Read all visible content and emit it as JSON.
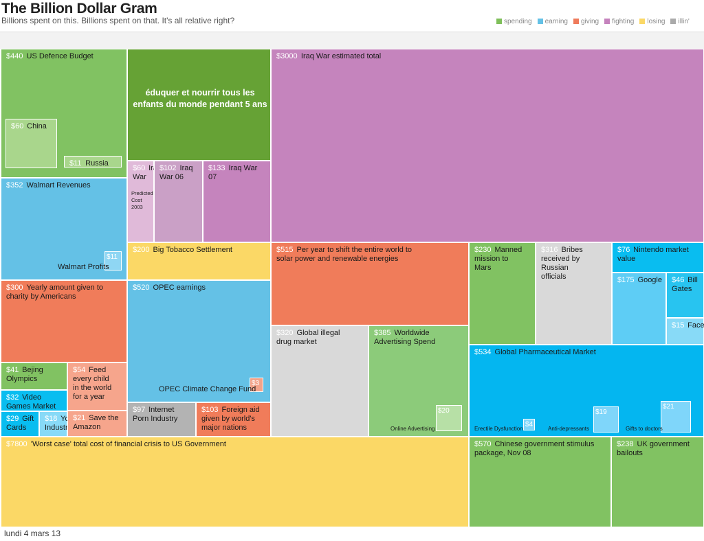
{
  "slide": {
    "overlay_text": "éduquer et nourrir tous les enfants du monde pendant 5 ans",
    "footer_date": "lundi 4 mars 13"
  },
  "chart_data": {
    "type": "treemap",
    "title": "The Billion Dollar Gram",
    "subtitle": "Billions spent on this. Billions spent on that. It's all relative right?",
    "legend": [
      {
        "label": "spending",
        "color": "#7fbf5a"
      },
      {
        "label": "earning",
        "color": "#64c1e6"
      },
      {
        "label": "giving",
        "color": "#ef7b5c"
      },
      {
        "label": "fighting",
        "color": "#c583bd"
      },
      {
        "label": "losing",
        "color": "#fbd866"
      },
      {
        "label": "illin'",
        "color": "#aaaaaa"
      }
    ],
    "items": [
      {
        "id": "us-defence",
        "value": "$440",
        "label": "US Defence Budget",
        "category": "spending",
        "color": "#81c262",
        "text": "#1a1a1a"
      },
      {
        "id": "china",
        "value": "$60",
        "label": "China",
        "category": "spending",
        "color": "#a9d68c",
        "text": "#1a1a1a"
      },
      {
        "id": "russia",
        "value": "$11",
        "label": "Russia",
        "category": "spending",
        "color": "#a9d68c",
        "text": "#1a1a1a"
      },
      {
        "id": "educate",
        "value": "",
        "label": "",
        "category": "spending",
        "color": "#66a235",
        "text": "#ffffff"
      },
      {
        "id": "iraq-total",
        "value": "$3000",
        "label": "Iraq War estimated total",
        "category": "fighting",
        "color": "#c584bd",
        "text": "#1a1a1a"
      },
      {
        "id": "iraq-2003",
        "value": "$60",
        "label": "Iraq War",
        "sublabel": "Predicted Cost 2003",
        "category": "fighting",
        "color": "#e0bad9",
        "text": "#1a1a1a"
      },
      {
        "id": "iraq-06",
        "value": "$102",
        "label": "Iraq War 06",
        "category": "fighting",
        "color": "#caa0c6",
        "text": "#1a1a1a"
      },
      {
        "id": "iraq-07",
        "value": "$133",
        "label": "Iraq War 07",
        "category": "fighting",
        "color": "#c584bd",
        "text": "#1a1a1a"
      },
      {
        "id": "walmart",
        "value": "$352",
        "label": "Walmart Revenues",
        "category": "earning",
        "color": "#64c1e6",
        "text": "#1a1a1a"
      },
      {
        "id": "walmart-profits",
        "value": "$11",
        "label": "Walmart Profits",
        "category": "earning",
        "color": "#8fd6f3",
        "text": "#1a1a1a"
      },
      {
        "id": "tobacco",
        "value": "$200",
        "label": "Big Tobacco Settlement",
        "category": "losing",
        "color": "#fbd866",
        "text": "#1a1a1a"
      },
      {
        "id": "solar",
        "value": "$515",
        "label": "Per year to shift the entire world to solar power and renewable energies",
        "category": "giving",
        "color": "#f07c5a",
        "text": "#1a1a1a"
      },
      {
        "id": "mars",
        "value": "$230",
        "label": "Manned mission to Mars",
        "category": "spending",
        "color": "#81c262",
        "text": "#1a1a1a"
      },
      {
        "id": "bribes",
        "value": "$316",
        "label": "Bribes received by Russian officials",
        "category": "illin",
        "color": "#d9d9d9",
        "text": "#1a1a1a"
      },
      {
        "id": "nintendo",
        "value": "$76",
        "label": "Nintendo market value",
        "category": "earning",
        "color": "#09bdf0",
        "text": "#1a1a1a"
      },
      {
        "id": "google",
        "value": "$175",
        "label": "Google",
        "category": "earning",
        "color": "#5ecdf5",
        "text": "#1a1a1a"
      },
      {
        "id": "billgates",
        "value": "$46",
        "label": "Bill Gates",
        "category": "earning",
        "color": "#28c4f0",
        "text": "#1a1a1a"
      },
      {
        "id": "facebook",
        "value": "$15",
        "label": "Facebook",
        "category": "earning",
        "color": "#88daf7",
        "text": "#1a1a1a"
      },
      {
        "id": "charity",
        "value": "$300",
        "label": "Yearly amount given to charity by Americans",
        "category": "giving",
        "color": "#f07c5a",
        "text": "#1a1a1a"
      },
      {
        "id": "opec",
        "value": "$520",
        "label": "OPEC earnings",
        "category": "earning",
        "color": "#64c1e6",
        "text": "#1a1a1a"
      },
      {
        "id": "opec-climate",
        "value": "$3",
        "label": "OPEC Climate Change Fund",
        "category": "giving",
        "color": "#f2a38a",
        "text": "#1a1a1a"
      },
      {
        "id": "drugs",
        "value": "$320",
        "label": "Global illegal drug market",
        "category": "illin",
        "color": "#d9d9d9",
        "text": "#1a1a1a"
      },
      {
        "id": "advertising",
        "value": "$385",
        "label": "Worldwide Advertising Spend",
        "category": "spending",
        "color": "#8ccb7a",
        "text": "#1a1a1a"
      },
      {
        "id": "online-ad",
        "value": "$20",
        "label": "Online Advertising",
        "category": "spending",
        "color": "#b7e0a6",
        "text": "#1a1a1a"
      },
      {
        "id": "pharma",
        "value": "$534",
        "label": "Global Pharmaceutical Market",
        "category": "earning",
        "color": "#04b6f0",
        "text": "#1a1a1a"
      },
      {
        "id": "erectile",
        "value": "$4",
        "label": "Erectile Dysfunction",
        "category": "earning",
        "color": "#7fd6fa",
        "text": "#1a1a1a"
      },
      {
        "id": "antidep",
        "value": "$19",
        "label": "Anti-depressants",
        "category": "earning",
        "color": "#7fd6fa",
        "text": "#1a1a1a"
      },
      {
        "id": "gifts-doctors",
        "value": "$21",
        "label": "Gifts to doctors",
        "category": "earning",
        "color": "#7fd6fa",
        "text": "#1a1a1a"
      },
      {
        "id": "beijing",
        "value": "$41",
        "label": "Bejing Olympics",
        "category": "spending",
        "color": "#81c262",
        "text": "#1a1a1a"
      },
      {
        "id": "feed-child",
        "value": "$54",
        "label": "Feed every child in the world for a year",
        "category": "giving",
        "color": "#f6a58c",
        "text": "#1a1a1a"
      },
      {
        "id": "video-games",
        "value": "$32",
        "label": "Video Games Market",
        "category": "earning",
        "color": "#09bdf0",
        "text": "#1a1a1a"
      },
      {
        "id": "gift-cards",
        "value": "$29",
        "label": "Gift Cards",
        "category": "earning",
        "color": "#09bdf0",
        "text": "#1a1a1a"
      },
      {
        "id": "yoga",
        "value": "$18",
        "label": "Yoga Industry",
        "category": "earning",
        "color": "#88daf7",
        "text": "#1a1a1a"
      },
      {
        "id": "amazon",
        "value": "$21",
        "label": "Save the Amazon",
        "category": "giving",
        "color": "#f6a58c",
        "text": "#1a1a1a"
      },
      {
        "id": "porn",
        "value": "$97",
        "label": "Internet Porn Industry",
        "category": "illin",
        "color": "#b3b3b3",
        "text": "#1a1a1a"
      },
      {
        "id": "foreign-aid",
        "value": "$103",
        "label": "Foreign aid given by world's major nations",
        "category": "giving",
        "color": "#f07c5a",
        "text": "#1a1a1a"
      },
      {
        "id": "crisis",
        "value": "$7800",
        "label": "'Worst case' total cost of financial crisis to US Government",
        "category": "losing",
        "color": "#fbd866",
        "text": "#1a1a1a"
      },
      {
        "id": "china-stimulus",
        "value": "$570",
        "label": "Chinese government stimulus package, Nov 08",
        "category": "spending",
        "color": "#81c262",
        "text": "#1a1a1a"
      },
      {
        "id": "uk-bailouts",
        "value": "$238",
        "label": "UK government bailouts",
        "category": "spending",
        "color": "#81c262",
        "text": "#1a1a1a"
      }
    ]
  }
}
